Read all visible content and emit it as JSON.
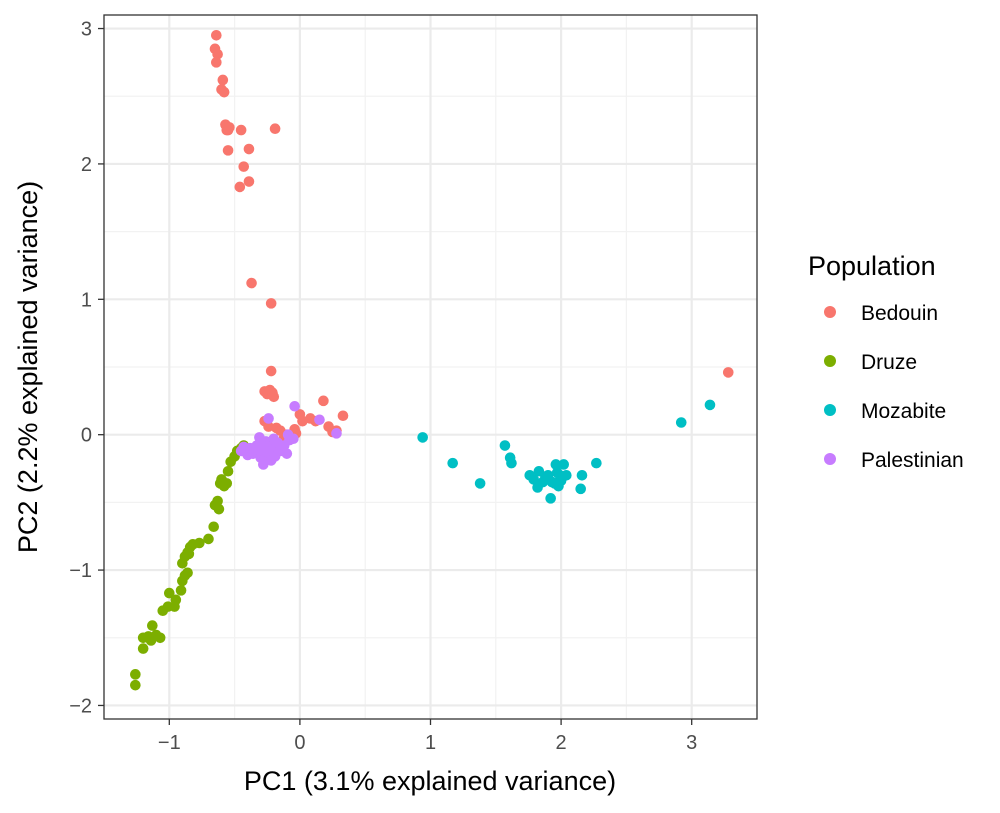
{
  "chart_data": {
    "type": "scatter",
    "xlabel": "PC1 (3.1% explained variance)",
    "ylabel": "PC2 (2.2% explained variance)",
    "xlim": [
      -1.5,
      3.5
    ],
    "ylim": [
      -2.1,
      3.1
    ],
    "xticks": [
      -1,
      0,
      1,
      2,
      3
    ],
    "yticks": [
      -2,
      -1,
      0,
      1,
      2,
      3
    ],
    "xtick_labels": [
      "−1",
      "0",
      "1",
      "2",
      "3"
    ],
    "ytick_labels": [
      "−2",
      "−1",
      "0",
      "1",
      "2",
      "3"
    ],
    "grid": true,
    "legend": {
      "title": "Population",
      "position": "right"
    },
    "series": [
      {
        "name": "Bedouin",
        "color": "#F8766D",
        "x": [
          -0.64,
          -0.65,
          -0.63,
          -0.64,
          -0.59,
          -0.6,
          -0.58,
          -0.57,
          -0.56,
          -0.55,
          -0.54,
          -0.45,
          -0.19,
          -0.39,
          -0.55,
          -0.43,
          -0.39,
          -0.46,
          -0.37,
          -0.22,
          -0.22,
          -0.25,
          -0.27,
          -0.23,
          -0.21,
          -0.2,
          -0.27,
          -0.24,
          -0.18,
          -0.15,
          -0.1,
          -0.12,
          -0.04,
          0.0,
          0.08,
          0.12,
          0.18,
          0.22,
          0.25,
          0.28,
          0.33,
          0.02,
          -0.03,
          3.28
        ],
        "y": [
          2.95,
          2.85,
          2.81,
          2.75,
          2.62,
          2.55,
          2.53,
          2.29,
          2.25,
          2.25,
          2.27,
          2.25,
          2.26,
          2.11,
          2.1,
          1.98,
          1.87,
          1.83,
          1.12,
          0.97,
          0.47,
          0.3,
          0.32,
          0.33,
          0.31,
          0.28,
          0.1,
          0.06,
          0.05,
          0.03,
          0.0,
          -0.02,
          0.04,
          0.15,
          0.12,
          0.1,
          0.25,
          0.06,
          0.02,
          0.03,
          0.14,
          0.1,
          0.01,
          0.46
        ]
      },
      {
        "name": "Druze",
        "color": "#7CAE00",
        "x": [
          -1.26,
          -1.26,
          -1.2,
          -1.2,
          -1.16,
          -1.14,
          -1.1,
          -1.13,
          -1.07,
          -1.01,
          -1.05,
          -1.0,
          -0.96,
          -0.95,
          -0.91,
          -0.9,
          -0.88,
          -0.86,
          -0.9,
          -0.88,
          -0.86,
          -0.85,
          -0.84,
          -0.82,
          -0.77,
          -0.7,
          -0.66,
          -0.62,
          -0.65,
          -0.63,
          -0.61,
          -0.6,
          -0.58,
          -0.56,
          -0.55,
          -0.53,
          -0.5,
          -0.48,
          -0.45,
          -0.43
        ],
        "y": [
          -1.85,
          -1.77,
          -1.58,
          -1.5,
          -1.49,
          -1.52,
          -1.48,
          -1.41,
          -1.5,
          -1.27,
          -1.3,
          -1.17,
          -1.27,
          -1.22,
          -1.15,
          -1.08,
          -1.04,
          -1.02,
          -0.95,
          -0.9,
          -0.87,
          -0.88,
          -0.83,
          -0.81,
          -0.8,
          -0.77,
          -0.68,
          -0.55,
          -0.52,
          -0.49,
          -0.36,
          -0.33,
          -0.38,
          -0.36,
          -0.27,
          -0.2,
          -0.16,
          -0.12,
          -0.1,
          -0.08
        ]
      },
      {
        "name": "Mozabite",
        "color": "#00BFC4",
        "x": [
          0.94,
          1.17,
          1.38,
          1.57,
          1.61,
          1.62,
          1.76,
          1.79,
          1.82,
          1.83,
          1.86,
          1.88,
          1.9,
          1.92,
          1.93,
          1.95,
          1.96,
          1.97,
          1.98,
          1.99,
          2.0,
          2.02,
          2.04,
          2.15,
          2.16,
          2.27,
          2.92,
          3.14
        ],
        "y": [
          -0.02,
          -0.21,
          -0.36,
          -0.08,
          -0.17,
          -0.21,
          -0.3,
          -0.33,
          -0.39,
          -0.27,
          -0.35,
          -0.31,
          -0.3,
          -0.47,
          -0.35,
          -0.36,
          -0.22,
          -0.28,
          -0.38,
          -0.3,
          -0.34,
          -0.22,
          -0.3,
          -0.4,
          -0.3,
          -0.21,
          0.09,
          0.22
        ]
      },
      {
        "name": "Palestinian",
        "color": "#C77CFF",
        "x": [
          -0.45,
          -0.43,
          -0.4,
          -0.38,
          -0.36,
          -0.34,
          -0.33,
          -0.31,
          -0.3,
          -0.29,
          -0.28,
          -0.27,
          -0.26,
          -0.25,
          -0.24,
          -0.23,
          -0.22,
          -0.21,
          -0.2,
          -0.19,
          -0.18,
          -0.17,
          -0.15,
          -0.12,
          -0.1,
          -0.09,
          -0.08,
          -0.05,
          -0.04,
          0.15,
          0.28
        ],
        "y": [
          -0.12,
          -0.09,
          -0.15,
          -0.1,
          -0.14,
          -0.12,
          -0.08,
          -0.02,
          -0.17,
          -0.1,
          -0.22,
          -0.18,
          -0.05,
          -0.13,
          0.12,
          -0.07,
          -0.19,
          -0.11,
          -0.03,
          -0.16,
          -0.09,
          -0.06,
          -0.12,
          -0.08,
          -0.14,
          0.0,
          -0.04,
          -0.03,
          0.21,
          0.11,
          0.01
        ]
      }
    ]
  }
}
